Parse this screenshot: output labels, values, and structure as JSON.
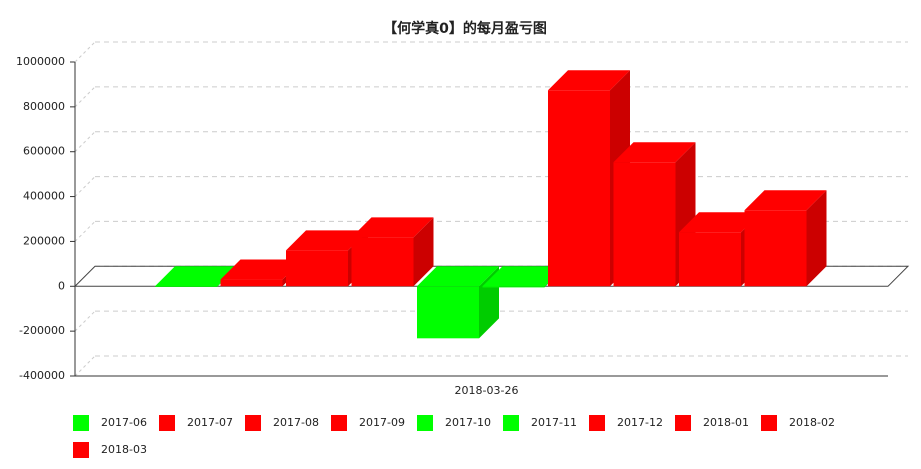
{
  "chart_data": {
    "type": "bar3d",
    "title": "【何学真0】的每月盈亏图",
    "categories": [
      "2018-03-26"
    ],
    "series": [
      {
        "name": "2017-06",
        "color": "#00ff00",
        "values": [
          -3000
        ]
      },
      {
        "name": "2017-07",
        "color": "#ff0000",
        "values": [
          30000
        ]
      },
      {
        "name": "2017-08",
        "color": "#ff0000",
        "values": [
          160000
        ]
      },
      {
        "name": "2017-09",
        "color": "#ff0000",
        "values": [
          218000
        ]
      },
      {
        "name": "2017-10",
        "color": "#00ff00",
        "values": [
          -232000
        ]
      },
      {
        "name": "2017-11",
        "color": "#00ff00",
        "values": [
          -5000
        ]
      },
      {
        "name": "2017-12",
        "color": "#ff0000",
        "values": [
          874000
        ]
      },
      {
        "name": "2018-01",
        "color": "#ff0000",
        "values": [
          553000
        ]
      },
      {
        "name": "2018-02",
        "color": "#ff0000",
        "values": [
          241000
        ]
      },
      {
        "name": "2018-03",
        "color": "#ff0000",
        "values": [
          339000
        ]
      }
    ],
    "ylim": [
      -400000,
      1000000
    ],
    "yticks": [
      -400000,
      -200000,
      0,
      200000,
      400000,
      600000,
      800000,
      1000000
    ],
    "grid": true
  }
}
